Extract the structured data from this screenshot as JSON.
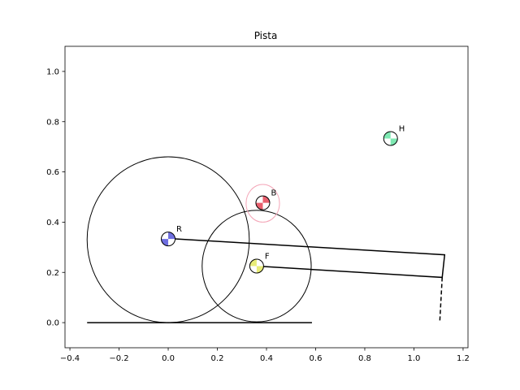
{
  "chart_data": {
    "type": "scatter",
    "title": "Pista",
    "xlabel": "",
    "ylabel": "",
    "xlim": [
      -0.42,
      1.22
    ],
    "ylim": [
      -0.1,
      1.1
    ],
    "grid": false,
    "xticks": [
      -0.4,
      -0.2,
      0.0,
      0.2,
      0.4,
      0.6,
      0.8,
      1.0,
      1.2
    ],
    "xtick_labels": [
      "−0.4",
      "−0.2",
      "0.0",
      "0.2",
      "0.4",
      "0.6",
      "0.8",
      "1.0",
      "1.2"
    ],
    "yticks": [
      0.0,
      0.2,
      0.4,
      0.6,
      0.8,
      1.0
    ],
    "ytick_labels": [
      "0.0",
      "0.2",
      "0.4",
      "0.6",
      "0.8",
      "1.0"
    ],
    "ground_line": {
      "x": [
        -0.33,
        0.585
      ],
      "y": [
        0.0,
        0.0
      ]
    },
    "circles": [
      {
        "name": "rear-wheel",
        "cx": 0.0,
        "cy": 0.33,
        "r": 0.33
      },
      {
        "name": "front-wheel",
        "cx": 0.36,
        "cy": 0.225,
        "r": 0.222
      }
    ],
    "rear_frame": {
      "x": [
        0.0,
        1.125,
        1.115,
        0.36
      ],
      "y": [
        0.335,
        0.27,
        0.18,
        0.225
      ]
    },
    "dashed_line": {
      "x": [
        1.115,
        1.105
      ],
      "y": [
        0.18,
        0.0
      ]
    },
    "ellipse": {
      "cx": 0.385,
      "cy": 0.475,
      "rx": 0.068,
      "ry": 0.075,
      "color": "#f4a6b8"
    },
    "points": [
      {
        "label": "R",
        "x": 0.0,
        "y": 0.333,
        "color": "#6f6fe0",
        "pattern": "topright-bottomleft"
      },
      {
        "label": "F",
        "x": 0.36,
        "y": 0.225,
        "color": "#e8ec78",
        "pattern": "bottomright-topleft"
      },
      {
        "label": "B",
        "x": 0.385,
        "y": 0.477,
        "color": "#e8606e",
        "pattern": "topright-bottomleft"
      },
      {
        "label": "H",
        "x": 0.905,
        "y": 0.733,
        "color": "#7ee8b2",
        "pattern": "bottomright-topleft"
      }
    ]
  }
}
